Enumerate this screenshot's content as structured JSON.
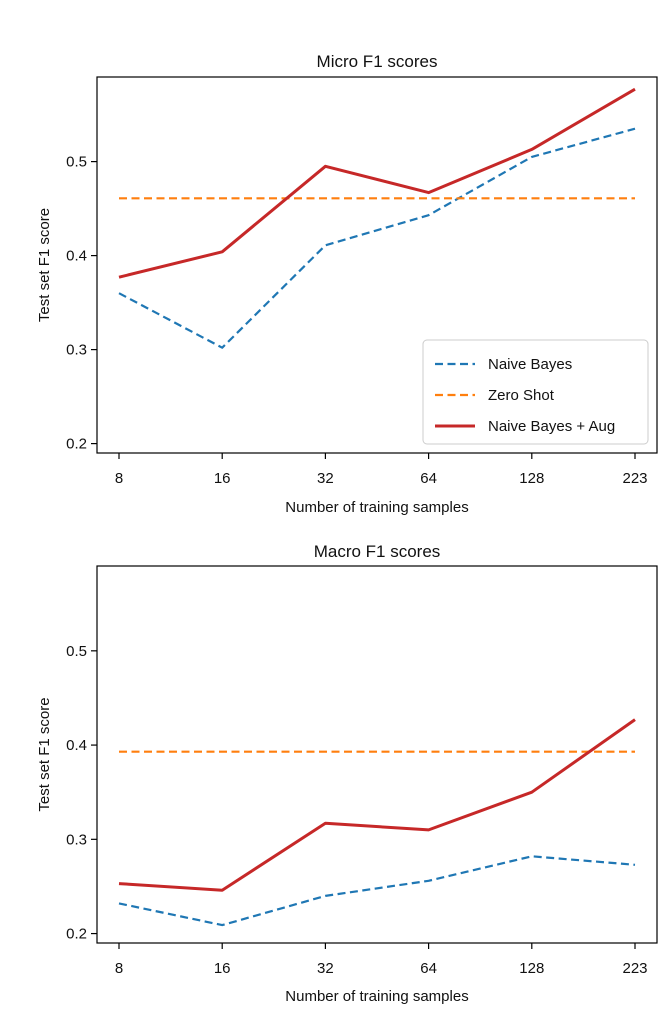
{
  "chart_data": [
    {
      "type": "line",
      "title": "Micro F1 scores",
      "xlabel": "Number of training samples",
      "ylabel": "Test set F1 score",
      "categories": [
        "8",
        "16",
        "32",
        "64",
        "128",
        "223"
      ],
      "ylim": [
        0.19,
        0.59
      ],
      "yticks": [
        0.2,
        0.3,
        0.4,
        0.5
      ],
      "ytick_labels": [
        "0.2",
        "0.3",
        "0.4",
        "0.5"
      ],
      "grid": false,
      "legend_position": "lower-right",
      "series": [
        {
          "name": "Naive Bayes",
          "values": [
            0.36,
            0.302,
            0.411,
            0.443,
            0.505,
            0.535
          ],
          "color": "#1f77b4",
          "style": "dashed"
        },
        {
          "name": "Zero Shot",
          "values": [
            0.461,
            0.461,
            0.461,
            0.461,
            0.461,
            0.461
          ],
          "color": "#ff7f0e",
          "style": "dashed"
        },
        {
          "name": "Naive Bayes + Aug",
          "values": [
            0.377,
            0.404,
            0.495,
            0.467,
            0.513,
            0.577
          ],
          "color": "#c62828",
          "style": "solid"
        }
      ]
    },
    {
      "type": "line",
      "title": "Macro F1 scores",
      "xlabel": "Number of training samples",
      "ylabel": "Test set F1 score",
      "categories": [
        "8",
        "16",
        "32",
        "64",
        "128",
        "223"
      ],
      "ylim": [
        0.19,
        0.59
      ],
      "yticks": [
        0.2,
        0.3,
        0.4,
        0.5
      ],
      "ytick_labels": [
        "0.2",
        "0.3",
        "0.4",
        "0.5"
      ],
      "grid": false,
      "series": [
        {
          "values": [
            0.232,
            0.209,
            0.24,
            0.256,
            0.282,
            0.273
          ],
          "color": "#1f77b4",
          "style": "dashed"
        },
        {
          "values": [
            0.393,
            0.393,
            0.393,
            0.393,
            0.393,
            0.393
          ],
          "color": "#ff7f0e",
          "style": "dashed"
        },
        {
          "values": [
            0.253,
            0.246,
            0.317,
            0.31,
            0.35,
            0.427
          ],
          "color": "#c62828",
          "style": "solid"
        }
      ]
    }
  ]
}
